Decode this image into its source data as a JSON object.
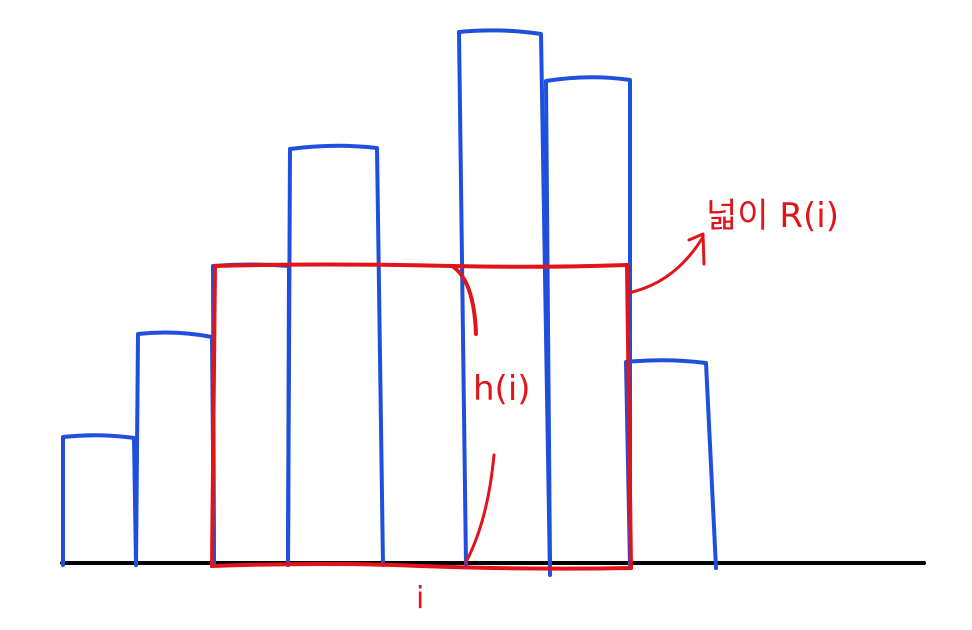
{
  "colors": {
    "background": "#ffffff",
    "baseline": "#000000",
    "bars": "#1f4fdc",
    "highlight": "#e0141a"
  },
  "diagram": {
    "bar_heights": [
      128,
      230,
      300,
      418,
      534,
      488,
      202
    ],
    "highlight_start_bar": 2,
    "highlight_end_bar": 6,
    "highlight_height": 300,
    "labels": {
      "height_label": "h(i)",
      "index_label": "i",
      "area_label": "넓이 R(i)"
    }
  }
}
